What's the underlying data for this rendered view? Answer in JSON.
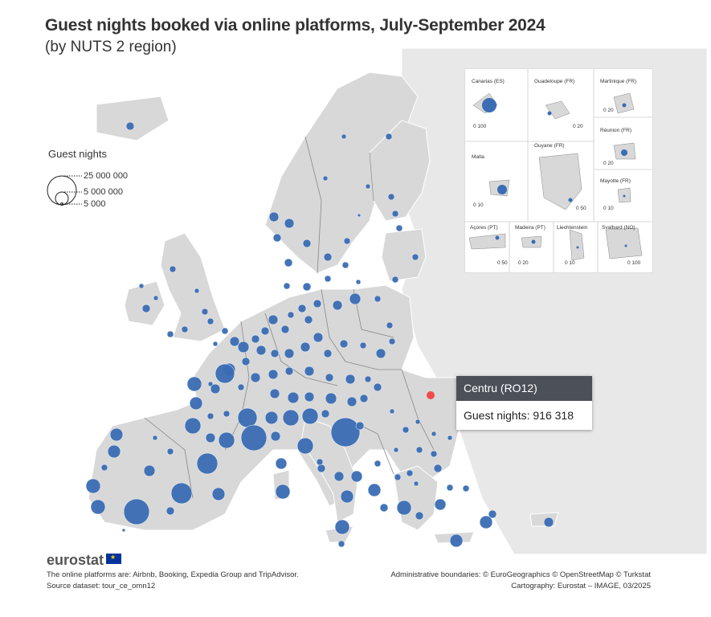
{
  "header": {
    "title": "Guest nights booked via online platforms, July-September 2024",
    "subtitle": "(by NUTS 2 region)"
  },
  "legend": {
    "title": "Guest nights",
    "sizes": [
      "25 000 000",
      "5 000 000",
      "5 000"
    ]
  },
  "insets": [
    {
      "name": "Canarias (ES)",
      "scale": "0 100"
    },
    {
      "name": "Guadeloupe (FR)",
      "scale": "0 20"
    },
    {
      "name": "Martinique (FR)",
      "scale": "0 20"
    },
    {
      "name": "Réunion (FR)",
      "scale": "0 20"
    },
    {
      "name": "Malta",
      "scale": "0 10"
    },
    {
      "name": "Guyane (FR)",
      "scale": "0 50"
    },
    {
      "name": "Mayotte (FR)",
      "scale": "0 10"
    },
    {
      "name": "Açores (PT)",
      "scale": "0 50"
    },
    {
      "name": "Madeira (PT)",
      "scale": "0 20"
    },
    {
      "name": "Liechtenstein",
      "scale": "0 10"
    },
    {
      "name": "Svalbard (NO)",
      "scale": "0 100"
    }
  ],
  "tooltip": {
    "region": "Centru (RO12)",
    "value_text": "Guest nights: 916 318"
  },
  "footer": {
    "logo": "eurostat",
    "note_platforms": "The online platforms are: Airbnb, Booking, Expedia Group and TripAdvisor.",
    "note_source": "Source dataset: tour_ce_omn12",
    "note_boundaries": "Administrative boundaries: © EuroGeographics © OpenStreetMap © Turkstat",
    "note_cartography": "Cartography: Eurostat – IMAGE, 03/2025"
  },
  "colors": {
    "bubble": "#3a6db3",
    "highlight": "#f04a4a",
    "land": "#d8d8d8",
    "outside": "#e8e8e8",
    "sea": "#ffffff"
  }
}
